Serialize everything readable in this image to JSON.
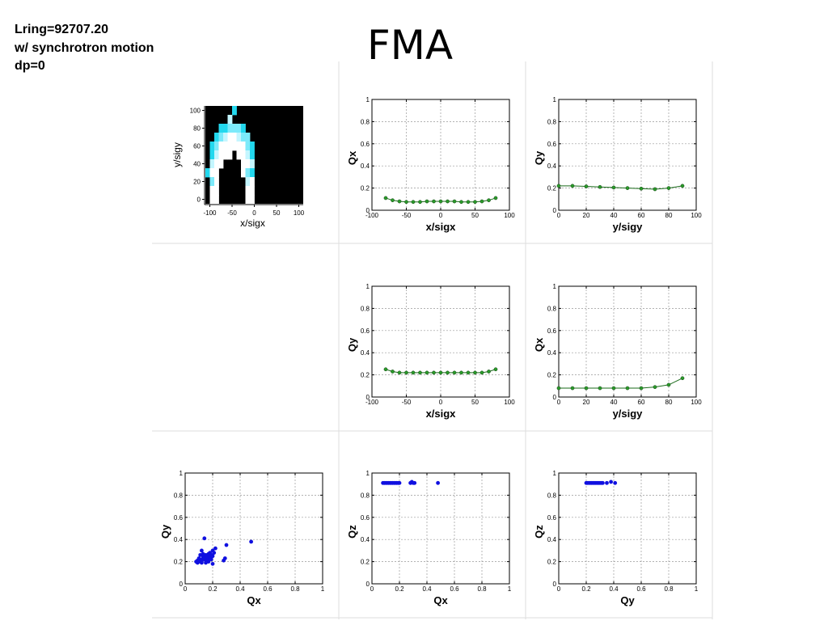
{
  "header": {
    "lines": [
      "Lring=92707.20",
      "w/ synchrotron motion",
      "dp=0"
    ],
    "title": "FMA"
  },
  "chart_data": [
    {
      "id": "aperture",
      "type": "heatmap",
      "xlabel": "x/sigx",
      "ylabel": "y/sigy",
      "xlim": [
        -110,
        110
      ],
      "ylim": [
        -5,
        105
      ],
      "xticks": [
        -100,
        -50,
        0,
        50,
        100
      ],
      "yticks": [
        0,
        20,
        40,
        60,
        80,
        100
      ],
      "grid": false,
      "background": "#000000",
      "colors": {
        "c": "#22d8ee",
        "m": "#7ceafa",
        "l": "#c4f6ff",
        "w": "#ffffff"
      },
      "cell": {
        "x0": -110,
        "dx": 10,
        "y0": -5,
        "dy": 10
      },
      "rows_top_down": [
        "......c.....",
        ".....l......",
        "...ccmmmc...",
        "..cmlwwlmm..",
        ".cmwwwwwwmc.",
        ".clwww.wwlc.",
        ".lww....wwl.",
        "cww.....wmc.",
        ".mw......lw.",
        ".ww......ww.",
        ".ww......ww."
      ]
    },
    {
      "id": "qx-vs-x",
      "type": "line",
      "xlabel": "x/sigx",
      "ylabel": "Qx",
      "xlim": [
        -100,
        100
      ],
      "ylim": [
        0,
        1
      ],
      "xticks": [
        -100,
        -50,
        0,
        50,
        100
      ],
      "yticks": [
        0,
        0.2,
        0.4,
        0.6,
        0.8,
        1
      ],
      "ytick_labels": [
        "0",
        "0.2",
        "0.4",
        "0.6",
        "0.8",
        "1"
      ],
      "grid": true,
      "color": "#1a6b1a",
      "marker": "#2a9a2a",
      "x": [
        -80,
        -70,
        -60,
        -50,
        -40,
        -30,
        -20,
        -10,
        0,
        10,
        20,
        30,
        40,
        50,
        60,
        70,
        80
      ],
      "y": [
        0.11,
        0.09,
        0.08,
        0.075,
        0.075,
        0.075,
        0.08,
        0.08,
        0.08,
        0.08,
        0.08,
        0.075,
        0.075,
        0.075,
        0.08,
        0.09,
        0.11
      ]
    },
    {
      "id": "qy-vs-y",
      "type": "line",
      "xlabel": "y/sigy",
      "ylabel": "Qy",
      "xlim": [
        0,
        100
      ],
      "ylim": [
        0,
        1
      ],
      "xticks": [
        0,
        20,
        40,
        60,
        80,
        100
      ],
      "yticks": [
        0,
        0.2,
        0.4,
        0.6,
        0.8,
        1
      ],
      "ytick_labels": [
        "0",
        "0.2",
        "0.4",
        "0.6",
        "0.8",
        "1"
      ],
      "grid": true,
      "color": "#1a6b1a",
      "marker": "#2a9a2a",
      "x": [
        0,
        10,
        20,
        30,
        40,
        50,
        60,
        70,
        80,
        90
      ],
      "y": [
        0.22,
        0.22,
        0.215,
        0.21,
        0.205,
        0.2,
        0.195,
        0.19,
        0.2,
        0.22
      ]
    },
    {
      "id": "qy-vs-x",
      "type": "line",
      "xlabel": "x/sigx",
      "ylabel": "Qy",
      "xlim": [
        -100,
        100
      ],
      "ylim": [
        0,
        1
      ],
      "xticks": [
        -100,
        -50,
        0,
        50,
        100
      ],
      "yticks": [
        0,
        0.2,
        0.4,
        0.6,
        0.8,
        1
      ],
      "ytick_labels": [
        "0",
        "0.2",
        "0.4",
        "0.6",
        "0.8",
        "1"
      ],
      "grid": true,
      "color": "#1a6b1a",
      "marker": "#2a9a2a",
      "x": [
        -80,
        -70,
        -60,
        -50,
        -40,
        -30,
        -20,
        -10,
        0,
        10,
        20,
        30,
        40,
        50,
        60,
        70,
        80
      ],
      "y": [
        0.25,
        0.23,
        0.22,
        0.22,
        0.22,
        0.22,
        0.22,
        0.22,
        0.22,
        0.22,
        0.22,
        0.22,
        0.22,
        0.22,
        0.22,
        0.23,
        0.25
      ]
    },
    {
      "id": "qx-vs-y",
      "type": "line",
      "xlabel": "y/sigy",
      "ylabel": "Qx",
      "xlim": [
        0,
        100
      ],
      "ylim": [
        0,
        1
      ],
      "xticks": [
        0,
        20,
        40,
        60,
        80,
        100
      ],
      "yticks": [
        0,
        0.2,
        0.4,
        0.6,
        0.8,
        1
      ],
      "ytick_labels": [
        "0",
        "0.2",
        "0.4",
        "0.6",
        "0.8",
        "1"
      ],
      "grid": true,
      "color": "#1a6b1a",
      "marker": "#2a9a2a",
      "x": [
        0,
        10,
        20,
        30,
        40,
        50,
        60,
        70,
        80,
        90
      ],
      "y": [
        0.08,
        0.08,
        0.08,
        0.08,
        0.08,
        0.08,
        0.08,
        0.09,
        0.11,
        0.17
      ]
    },
    {
      "id": "qy-vs-qx",
      "type": "scatter",
      "xlabel": "Qx",
      "ylabel": "Qy",
      "xlim": [
        0,
        1
      ],
      "ylim": [
        0,
        1
      ],
      "xticks": [
        0,
        0.2,
        0.4,
        0.6,
        0.8,
        1
      ],
      "yticks": [
        0,
        0.2,
        0.4,
        0.6,
        0.8,
        1
      ],
      "xtick_labels": [
        "0",
        "0.2",
        "0.4",
        "0.6",
        "0.8",
        "1"
      ],
      "ytick_labels": [
        "0",
        "0.2",
        "0.4",
        "0.6",
        "0.8",
        "1"
      ],
      "grid": true,
      "color": "#1010e0",
      "points": [
        [
          0.08,
          0.2
        ],
        [
          0.09,
          0.19
        ],
        [
          0.1,
          0.2
        ],
        [
          0.1,
          0.22
        ],
        [
          0.11,
          0.21
        ],
        [
          0.12,
          0.22
        ],
        [
          0.12,
          0.2
        ],
        [
          0.13,
          0.23
        ],
        [
          0.13,
          0.25
        ],
        [
          0.14,
          0.22
        ],
        [
          0.14,
          0.24
        ],
        [
          0.15,
          0.26
        ],
        [
          0.15,
          0.21
        ],
        [
          0.16,
          0.22
        ],
        [
          0.16,
          0.25
        ],
        [
          0.17,
          0.27
        ],
        [
          0.17,
          0.23
        ],
        [
          0.18,
          0.24
        ],
        [
          0.18,
          0.28
        ],
        [
          0.19,
          0.22
        ],
        [
          0.19,
          0.26
        ],
        [
          0.2,
          0.25
        ],
        [
          0.2,
          0.3
        ],
        [
          0.21,
          0.28
        ],
        [
          0.22,
          0.32
        ],
        [
          0.11,
          0.26
        ],
        [
          0.12,
          0.3
        ],
        [
          0.14,
          0.41
        ],
        [
          0.1,
          0.23
        ],
        [
          0.09,
          0.21
        ],
        [
          0.2,
          0.18
        ],
        [
          0.28,
          0.21
        ],
        [
          0.29,
          0.23
        ],
        [
          0.3,
          0.35
        ],
        [
          0.48,
          0.38
        ],
        [
          0.12,
          0.19
        ],
        [
          0.15,
          0.19
        ],
        [
          0.17,
          0.2
        ],
        [
          0.13,
          0.27
        ]
      ]
    },
    {
      "id": "qz-vs-qx",
      "type": "scatter",
      "xlabel": "Qx",
      "ylabel": "Qz",
      "xlim": [
        0,
        1
      ],
      "ylim": [
        0,
        1
      ],
      "xticks": [
        0,
        0.2,
        0.4,
        0.6,
        0.8,
        1
      ],
      "yticks": [
        0,
        0.2,
        0.4,
        0.6,
        0.8,
        1
      ],
      "xtick_labels": [
        "0",
        "0.2",
        "0.4",
        "0.6",
        "0.8",
        "1"
      ],
      "ytick_labels": [
        "0",
        "0.2",
        "0.4",
        "0.6",
        "0.8",
        "1"
      ],
      "grid": true,
      "color": "#1010e0",
      "points": [
        [
          0.08,
          0.91
        ],
        [
          0.09,
          0.91
        ],
        [
          0.1,
          0.91
        ],
        [
          0.11,
          0.91
        ],
        [
          0.12,
          0.91
        ],
        [
          0.13,
          0.91
        ],
        [
          0.14,
          0.91
        ],
        [
          0.15,
          0.91
        ],
        [
          0.16,
          0.91
        ],
        [
          0.17,
          0.91
        ],
        [
          0.18,
          0.91
        ],
        [
          0.19,
          0.91
        ],
        [
          0.2,
          0.91
        ],
        [
          0.28,
          0.91
        ],
        [
          0.29,
          0.92
        ],
        [
          0.3,
          0.91
        ],
        [
          0.31,
          0.91
        ],
        [
          0.48,
          0.91
        ]
      ]
    },
    {
      "id": "qz-vs-qy",
      "type": "scatter",
      "xlabel": "Qy",
      "ylabel": "Qz",
      "xlim": [
        0,
        1
      ],
      "ylim": [
        0,
        1
      ],
      "xticks": [
        0,
        0.2,
        0.4,
        0.6,
        0.8,
        1
      ],
      "yticks": [
        0,
        0.2,
        0.4,
        0.6,
        0.8,
        1
      ],
      "xtick_labels": [
        "0",
        "0.2",
        "0.4",
        "0.6",
        "0.8",
        "1"
      ],
      "ytick_labels": [
        "0",
        "0.2",
        "0.4",
        "0.6",
        "0.8",
        "1"
      ],
      "grid": true,
      "color": "#1010e0",
      "points": [
        [
          0.2,
          0.91
        ],
        [
          0.21,
          0.91
        ],
        [
          0.22,
          0.91
        ],
        [
          0.23,
          0.91
        ],
        [
          0.24,
          0.91
        ],
        [
          0.25,
          0.91
        ],
        [
          0.26,
          0.91
        ],
        [
          0.27,
          0.91
        ],
        [
          0.28,
          0.91
        ],
        [
          0.29,
          0.91
        ],
        [
          0.3,
          0.91
        ],
        [
          0.31,
          0.91
        ],
        [
          0.32,
          0.91
        ],
        [
          0.35,
          0.91
        ],
        [
          0.38,
          0.92
        ],
        [
          0.41,
          0.91
        ]
      ]
    }
  ]
}
